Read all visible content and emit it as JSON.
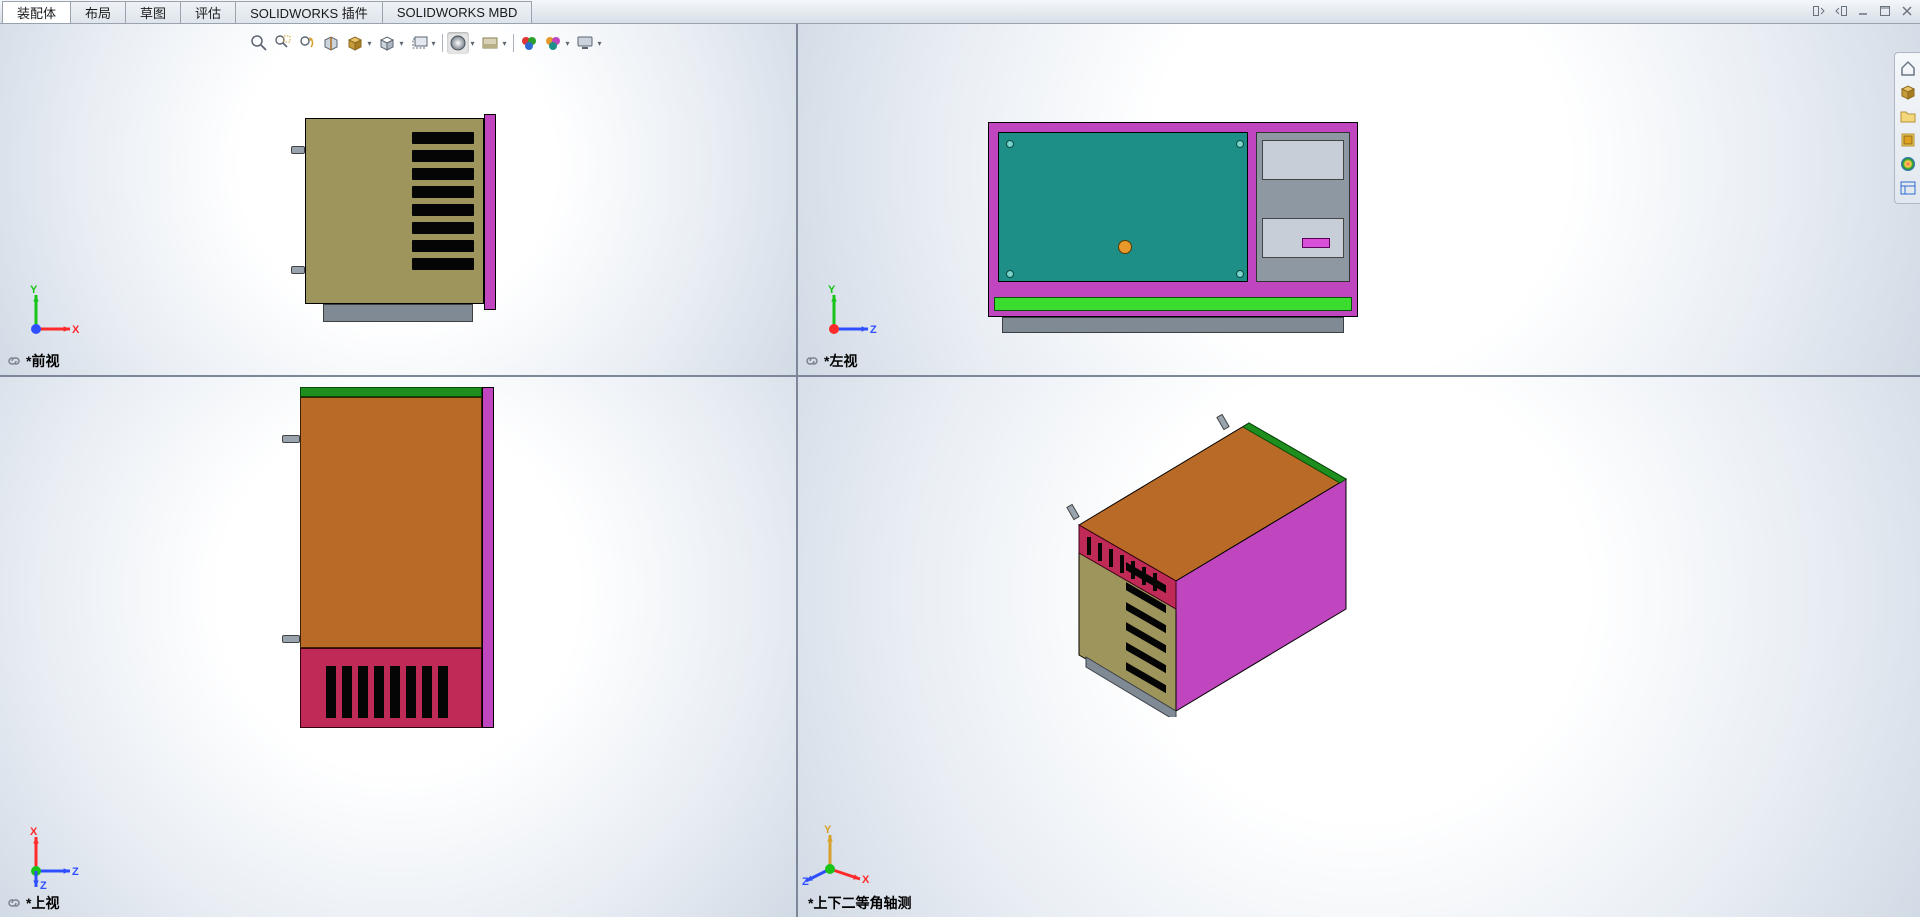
{
  "tabs": [
    {
      "id": "assembly",
      "label": "装配体",
      "active": true
    },
    {
      "id": "layout",
      "label": "布局",
      "active": false
    },
    {
      "id": "sketch",
      "label": "草图",
      "active": false
    },
    {
      "id": "evaluate",
      "label": "评估",
      "active": false
    },
    {
      "id": "addins",
      "label": "SOLIDWORKS 插件",
      "active": false
    },
    {
      "id": "mbd",
      "label": "SOLIDWORKS MBD",
      "active": false
    }
  ],
  "window_buttons": [
    {
      "name": "collapse-panel-icon"
    },
    {
      "name": "expand-panel-icon"
    },
    {
      "name": "minimize-icon"
    },
    {
      "name": "maximize-icon"
    },
    {
      "name": "close-icon"
    }
  ],
  "hud_tools": [
    {
      "name": "zoom-to-fit-icon",
      "glyph": "zoom",
      "dd": false
    },
    {
      "name": "zoom-area-icon",
      "glyph": "zoom-area",
      "dd": false
    },
    {
      "name": "previous-view-icon",
      "glyph": "prev",
      "dd": false
    },
    {
      "name": "section-view-icon",
      "glyph": "section",
      "dd": false
    },
    {
      "name": "view-orientation-icon",
      "glyph": "cube",
      "dd": true
    },
    {
      "name": "display-style-icon",
      "glyph": "style",
      "dd": true
    },
    {
      "name": "hide-show-icon",
      "glyph": "hideshow",
      "dd": true
    },
    {
      "name": "edit-appearance-icon",
      "glyph": "sphere",
      "pressed": true,
      "dd": true
    },
    {
      "name": "apply-scene-icon",
      "glyph": "scene",
      "dd": true
    },
    {
      "name": "appearances-icon",
      "glyph": "palette1",
      "dd": false
    },
    {
      "name": "render-tools-icon",
      "glyph": "palette2",
      "dd": true
    },
    {
      "name": "view-settings-icon",
      "glyph": "monitor",
      "dd": true
    }
  ],
  "right_strip": [
    {
      "name": "home-icon",
      "color": "#6b7785"
    },
    {
      "name": "cube-icon",
      "color": "#c79b52"
    },
    {
      "name": "folder-icon",
      "color": "#d7b34a"
    },
    {
      "name": "extrude-icon",
      "color": "#e0a11e"
    },
    {
      "name": "appearance-sphere-icon",
      "color": "#2aa02a",
      "rainbow": true
    },
    {
      "name": "properties-panel-icon",
      "color": "#2d6bd1"
    }
  ],
  "viewports": {
    "tl": {
      "label": "*前视",
      "linked": true,
      "triad": {
        "type": "xy",
        "up": "Y",
        "up_color": "#19c419",
        "right": "X",
        "right_color": "#ff2a2a",
        "origin": "#2f4fff"
      }
    },
    "tr": {
      "label": "*左视",
      "linked": true,
      "triad": {
        "type": "xy",
        "up": "Y",
        "up_color": "#19c419",
        "right": "Z",
        "right_color": "#2f4fff",
        "origin": "#ff2a2a"
      }
    },
    "bl": {
      "label": "*上视",
      "linked": true,
      "triad": {
        "type": "xy",
        "up": "X",
        "up_color": "#ff2a2a",
        "right": "Z",
        "right_color": "#2f4fff",
        "origin": "#19c419",
        "down": true
      }
    },
    "br": {
      "label": "*上下二等角轴测",
      "linked": false,
      "triad": {
        "type": "iso"
      }
    }
  },
  "colors": {
    "olive": "#9e955d",
    "magenta": "#c046c0",
    "teal": "#1e8f86",
    "grey": "#8d98a3",
    "orange": "#b96a27",
    "crimson": "#bf2b56",
    "green": "#3bdc2f",
    "knob": "#e79a2b"
  }
}
